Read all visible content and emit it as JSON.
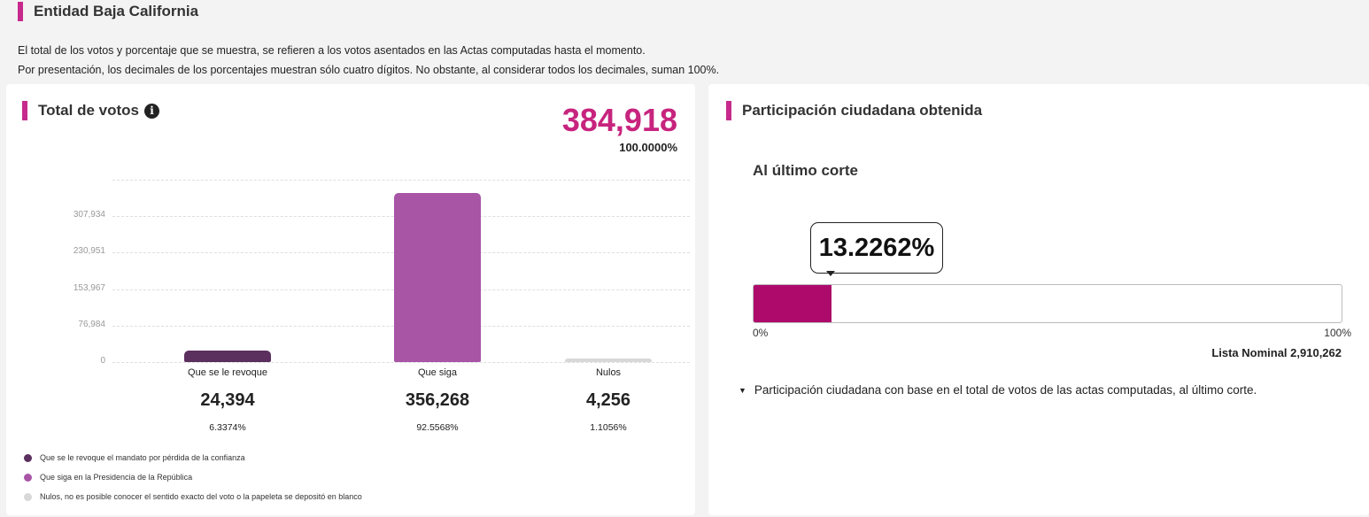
{
  "entity": {
    "title": "Entidad Baja California"
  },
  "info": {
    "line1": "El total de los votos y porcentaje que se muestra, se refieren a los votos asentados en las Actas computadas hasta el momento.",
    "line2": "Por presentación, los decimales de los porcentajes muestran sólo cuatro dígitos. No obstante, al considerar todos los decimales, suman 100%."
  },
  "votes_card": {
    "title": "Total de votos",
    "info_icon": "info-icon",
    "total": "384,918",
    "total_pct": "100.0000%",
    "candidates": [
      {
        "name": "Que se le revoque",
        "votes": "24,394",
        "pct": "6.3374%"
      },
      {
        "name": "Que siga",
        "votes": "356,268",
        "pct": "92.5568%"
      },
      {
        "name": "Nulos",
        "votes": "4,256",
        "pct": "1.1056%"
      }
    ],
    "legend": [
      {
        "label": "Que se le revoque el mandato por pérdida de la confianza",
        "color": "#5b2f5e"
      },
      {
        "label": "Que siga en la Presidencia de la República",
        "color": "#a855a6"
      },
      {
        "label": "Nulos, no es posible conocer el sentido exacto del voto o la papeleta se depositó en blanco",
        "color": "#d8d8d8"
      }
    ]
  },
  "chart_data": {
    "type": "bar",
    "categories": [
      "Que se le revoque",
      "Que siga",
      "Nulos"
    ],
    "values": [
      24394,
      356268,
      4256
    ],
    "colors": [
      "#5b2f5e",
      "#a855a6",
      "#d8d8d8"
    ],
    "yticks": [
      0,
      76984,
      153967,
      230951,
      307934
    ],
    "ytick_labels": [
      "0",
      "76,984",
      "153,967",
      "230,951",
      "307,934"
    ],
    "ylim": [
      0,
      384918
    ],
    "grid": true
  },
  "participation_card": {
    "title": "Participación ciudadana obtenida",
    "subtitle": "Al último corte",
    "percent_label": "13.2262%",
    "percent_value": 13.2262,
    "axis_min": "0%",
    "axis_max": "100%",
    "nominal": "Lista Nominal 2,910,262",
    "note": "Participación ciudadana con base en el total de votos de las actas computadas, al último corte.",
    "accent": "#ae0a6c"
  }
}
